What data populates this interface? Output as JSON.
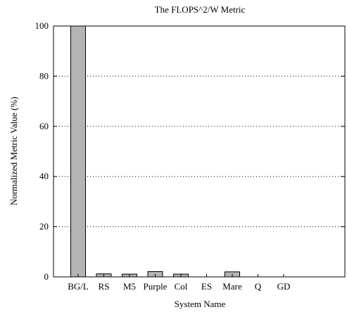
{
  "chart_data": {
    "type": "bar",
    "title": "The FLOPS^2/W Metric",
    "xlabel": "System Name",
    "ylabel": "Normalized Metric Value (%)",
    "categories": [
      "BG/L",
      "RS",
      "M5",
      "Purple",
      "Col",
      "ES",
      "Mare",
      "Q",
      "GD"
    ],
    "values": [
      100,
      1.2,
      1.1,
      2.1,
      1.1,
      0,
      2.0,
      0,
      0
    ],
    "ylim": [
      0,
      100
    ],
    "yticks": [
      0,
      20,
      40,
      60,
      80,
      100
    ],
    "grid": true,
    "legend": "none",
    "colors": {
      "bar": "#b4b4b4",
      "gridline": "#000000"
    }
  }
}
